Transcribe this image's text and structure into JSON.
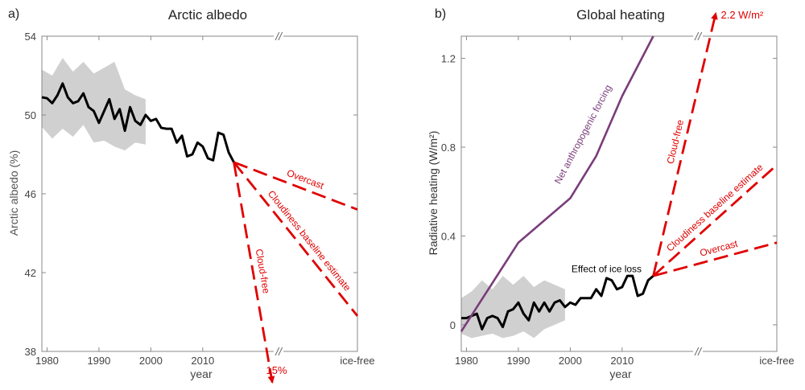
{
  "colors": {
    "observed": "#000000",
    "ensemble": "#c8c8c8",
    "scenario": "#e00000",
    "forcing": "#7a3d7a",
    "axes": "#888888",
    "text": "#222222"
  },
  "chart_data": [
    {
      "type": "line",
      "panel_label": "a)",
      "title": "Arctic albedo",
      "xlabel": "year",
      "ylabel": "Arctic albedo (%)",
      "xlim": [
        1979,
        2040
      ],
      "ylim": [
        38,
        54
      ],
      "x_ticks": [
        1980,
        1990,
        2000,
        2010
      ],
      "x_tick_labels": [
        "1980",
        "1990",
        "2000",
        "2010"
      ],
      "extra_x_tick_label": "ice-free",
      "axis_break": "//",
      "y_ticks": [
        38,
        42,
        46,
        50,
        54
      ],
      "y_tick_labels": [
        "38",
        "42",
        "46",
        "50",
        "54"
      ],
      "grid": false,
      "series": [
        {
          "name": "",
          "x": [
            1979,
            1980,
            1981,
            1982,
            1983,
            1984,
            1985,
            1986,
            1987,
            1988,
            1989,
            1990,
            1991,
            1992,
            1993,
            1994,
            1995,
            1996,
            1997,
            1998,
            1999,
            2000,
            2001,
            2002,
            2003,
            2004,
            2005,
            2006,
            2007,
            2008,
            2009,
            2010,
            2011,
            2012,
            2013,
            2014,
            2015,
            2016
          ],
          "values": [
            50.9,
            50.85,
            50.6,
            51.0,
            51.6,
            50.9,
            50.6,
            50.7,
            51.1,
            50.4,
            50.2,
            49.6,
            50.2,
            50.8,
            49.8,
            50.3,
            49.2,
            50.4,
            49.7,
            49.5,
            50.0,
            49.7,
            49.8,
            49.35,
            49.3,
            49.3,
            48.6,
            48.95,
            47.9,
            48.0,
            48.6,
            48.4,
            47.8,
            47.7,
            49.1,
            49.0,
            48.1,
            47.6
          ]
        }
      ],
      "ensemble_range": {
        "x": [
          1979,
          1981,
          1983,
          1985,
          1987,
          1989,
          1991,
          1993,
          1995,
          1997,
          1999
        ],
        "low": [
          49.4,
          48.8,
          49.3,
          48.9,
          49.5,
          48.6,
          48.7,
          48.4,
          48.2,
          48.6,
          48.5
        ],
        "high": [
          52.3,
          52.0,
          52.9,
          52.2,
          52.7,
          52.1,
          52.4,
          52.7,
          51.3,
          51.0,
          50.8
        ]
      },
      "scenarios": [
        {
          "label": "Overcast",
          "end_value": 45.2
        },
        {
          "label": "Cloudiness baseline estimate",
          "end_value": 39.8
        },
        {
          "label": "Cloud-free",
          "end_value": 36.0,
          "end_label": "15%"
        }
      ]
    },
    {
      "type": "line",
      "panel_label": "b)",
      "title": "Global heating",
      "xlabel": "year",
      "ylabel": "Radiative heating (W/m²)",
      "xlim": [
        1979,
        2040
      ],
      "ylim": [
        -0.12,
        1.3
      ],
      "x_ticks": [
        1980,
        1990,
        2000,
        2010
      ],
      "x_tick_labels": [
        "1980",
        "1990",
        "2000",
        "2010"
      ],
      "extra_x_tick_label": "ice-free",
      "axis_break": "//",
      "y_ticks": [
        0,
        0.4,
        0.8,
        1.2
      ],
      "y_tick_labels": [
        "0",
        "0.4",
        "0.8",
        "1.2"
      ],
      "grid": false,
      "series": [
        {
          "name": "Effect of ice loss",
          "x": [
            1979,
            1980,
            1981,
            1982,
            1983,
            1984,
            1985,
            1986,
            1987,
            1988,
            1989,
            1990,
            1991,
            1992,
            1993,
            1994,
            1995,
            1996,
            1997,
            1998,
            1999,
            2000,
            2001,
            2002,
            2003,
            2004,
            2005,
            2006,
            2007,
            2008,
            2009,
            2010,
            2011,
            2012,
            2013,
            2014,
            2015,
            2016
          ],
          "values": [
            0.03,
            0.03,
            0.04,
            0.05,
            -0.02,
            0.03,
            0.04,
            0.03,
            -0.01,
            0.06,
            0.07,
            0.1,
            0.05,
            0.02,
            0.1,
            0.06,
            0.1,
            0.06,
            0.1,
            0.11,
            0.08,
            0.1,
            0.09,
            0.12,
            0.12,
            0.12,
            0.16,
            0.13,
            0.21,
            0.2,
            0.16,
            0.17,
            0.22,
            0.22,
            0.13,
            0.14,
            0.2,
            0.22
          ]
        },
        {
          "name": "Net anthropogenic forcing",
          "x": [
            1979,
            1990,
            2000,
            2005,
            2010,
            2016
          ],
          "values": [
            -0.03,
            0.37,
            0.57,
            0.76,
            1.03,
            1.3
          ]
        }
      ],
      "ensemble_range": {
        "x": [
          1979,
          1981,
          1983,
          1985,
          1987,
          1989,
          1991,
          1993,
          1995,
          1997,
          1999
        ],
        "low": [
          -0.04,
          -0.06,
          -0.05,
          -0.04,
          -0.06,
          -0.05,
          -0.03,
          -0.06,
          -0.02,
          0.0,
          0.02
        ],
        "high": [
          0.12,
          0.15,
          0.2,
          0.16,
          0.22,
          0.18,
          0.22,
          0.17,
          0.2,
          0.18,
          0.16
        ]
      },
      "scenarios": [
        {
          "label": "Overcast",
          "end_value": 0.37
        },
        {
          "label": "Cloudiness baseline estimate",
          "end_value": 0.72
        },
        {
          "label": "Cloud-free",
          "end_value": 1.38,
          "end_label": "2.2 W/m²"
        }
      ]
    }
  ]
}
